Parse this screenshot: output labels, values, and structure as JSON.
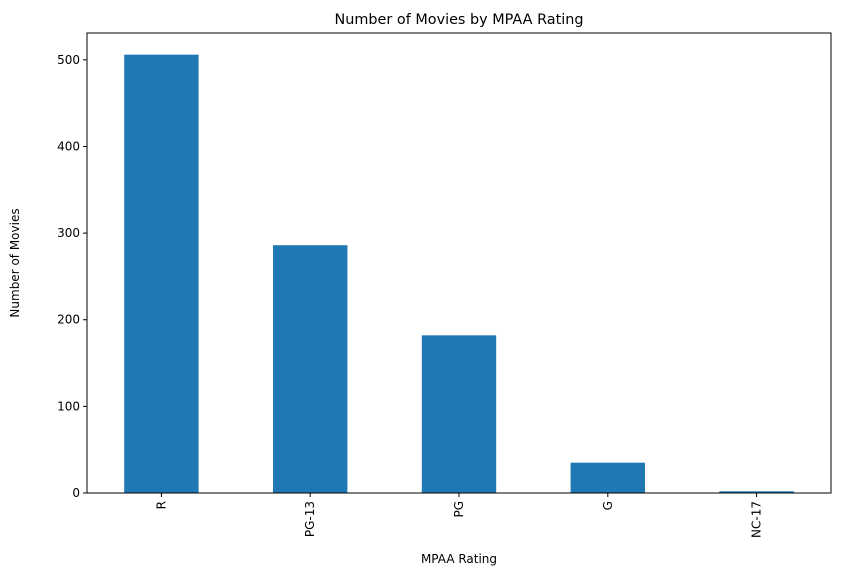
{
  "chart_data": {
    "type": "bar",
    "title": "Number of Movies by MPAA Rating",
    "xlabel": "MPAA Rating",
    "ylabel": "Number of Movies",
    "categories": [
      "R",
      "PG-13",
      "PG",
      "G",
      "NC-17"
    ],
    "values": [
      506,
      286,
      182,
      35,
      2
    ],
    "ylim": [
      0,
      531
    ],
    "yticks": [
      0,
      100,
      200,
      300,
      400,
      500
    ],
    "grid": false,
    "bar_color": "#1f77b4"
  }
}
